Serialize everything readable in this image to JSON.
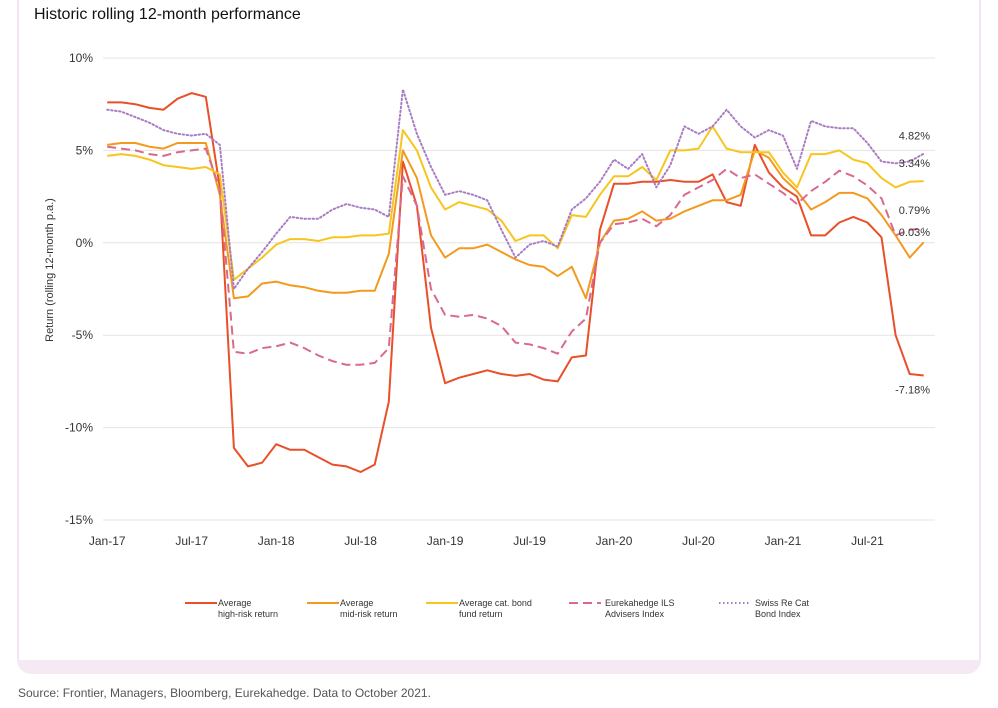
{
  "chart_data": {
    "type": "line",
    "title": "Historic rolling 12-month performance",
    "ylabel": "Return (rolling 12-month p.a.)",
    "xlabel": "",
    "ylim": [
      -15,
      10
    ],
    "y_ticks": [
      "10%",
      "5%",
      "0%",
      "-5%",
      "-10%",
      "-15%"
    ],
    "y_tick_values": [
      10,
      5,
      0,
      -5,
      -10,
      -15
    ],
    "x_ticks": [
      {
        "label": "Jan-17",
        "index": 0
      },
      {
        "label": "Jul-17",
        "index": 6
      },
      {
        "label": "Jan-18",
        "index": 12
      },
      {
        "label": "Jul-18",
        "index": 18
      },
      {
        "label": "Jan-19",
        "index": 24
      },
      {
        "label": "Jul-19",
        "index": 30
      },
      {
        "label": "Jan-20",
        "index": 36
      },
      {
        "label": "Jul-20",
        "index": 42
      },
      {
        "label": "Jan-21",
        "index": 48
      },
      {
        "label": "Jul-21",
        "index": 54
      }
    ],
    "x_range": [
      -0.3,
      58.8
    ],
    "grid": "horizontal",
    "legend_position": "bottom",
    "series": [
      {
        "name": "Average high-risk return",
        "legend_lines": [
          "Average",
          "high-risk return"
        ],
        "color": "#e8502a",
        "dash": "solid",
        "values": [
          7.6,
          7.6,
          7.5,
          7.3,
          7.2,
          7.8,
          8.1,
          7.9,
          3.0,
          -11.1,
          -12.1,
          -11.9,
          -10.9,
          -11.2,
          -11.2,
          -11.6,
          -12.0,
          -12.1,
          -12.4,
          -12.0,
          -8.6,
          4.4,
          2.0,
          -4.6,
          -7.6,
          -7.3,
          -7.1,
          -6.9,
          -7.1,
          -7.2,
          -7.1,
          -7.4,
          -7.5,
          -6.2,
          -6.1,
          0.7,
          3.2,
          3.2,
          3.3,
          3.3,
          3.4,
          3.3,
          3.3,
          3.7,
          2.2,
          2.0,
          5.3,
          3.8,
          3.0,
          2.5,
          0.4,
          0.4,
          1.1,
          1.4,
          1.1,
          0.3,
          -5.0,
          -7.1,
          -7.18
        ],
        "end_label": "-7.18%"
      },
      {
        "name": "Average mid-risk return",
        "legend_lines": [
          "Average",
          "mid-risk return"
        ],
        "color": "#f39a1e",
        "dash": "solid",
        "values": [
          5.3,
          5.4,
          5.4,
          5.2,
          5.1,
          5.4,
          5.4,
          5.4,
          2.6,
          -3.0,
          -2.9,
          -2.2,
          -2.1,
          -2.3,
          -2.4,
          -2.6,
          -2.7,
          -2.7,
          -2.6,
          -2.6,
          -0.6,
          5.0,
          3.5,
          0.4,
          -0.8,
          -0.3,
          -0.3,
          -0.1,
          -0.5,
          -0.9,
          -1.2,
          -1.3,
          -1.8,
          -1.3,
          -3.0,
          0.0,
          1.2,
          1.3,
          1.7,
          1.2,
          1.3,
          1.7,
          2.0,
          2.3,
          2.3,
          2.6,
          5.0,
          4.6,
          3.5,
          2.8,
          1.8,
          2.2,
          2.7,
          2.7,
          2.4,
          1.5,
          0.4,
          -0.8,
          0.03
        ],
        "end_label": "0.03%"
      },
      {
        "name": "Average cat. bond fund return",
        "legend_lines": [
          "Average cat. bond",
          "fund return"
        ],
        "color": "#f7c51e",
        "dash": "solid",
        "values": [
          4.7,
          4.8,
          4.7,
          4.5,
          4.2,
          4.1,
          4.0,
          4.1,
          3.7,
          -2.0,
          -1.4,
          -0.8,
          -0.1,
          0.2,
          0.2,
          0.1,
          0.3,
          0.3,
          0.4,
          0.4,
          0.5,
          6.1,
          5.0,
          3.0,
          1.8,
          2.2,
          2.0,
          1.8,
          1.2,
          0.1,
          0.4,
          0.4,
          -0.3,
          1.5,
          1.4,
          2.6,
          3.6,
          3.6,
          4.1,
          3.4,
          5.0,
          5.0,
          5.1,
          6.3,
          5.1,
          4.9,
          4.9,
          4.9,
          3.8,
          3.0,
          4.8,
          4.8,
          5.0,
          4.5,
          4.3,
          3.5,
          3.0,
          3.3,
          3.34
        ],
        "end_label": "3.34%"
      },
      {
        "name": "Eurekahedge ILS Advisers Index",
        "legend_lines": [
          "Eurekahedge ILS",
          "Advisers Index"
        ],
        "color": "#d9698f",
        "dash": "dashed",
        "values": [
          5.2,
          5.1,
          5.0,
          4.8,
          4.7,
          4.9,
          5.0,
          5.1,
          2.9,
          -5.9,
          -6.0,
          -5.7,
          -5.6,
          -5.4,
          -5.7,
          -6.1,
          -6.4,
          -6.6,
          -6.6,
          -6.5,
          -5.7,
          3.6,
          2.0,
          -2.5,
          -3.9,
          -4.0,
          -3.9,
          -4.1,
          -4.5,
          -5.4,
          -5.5,
          -5.7,
          -6.0,
          -4.8,
          -4.1,
          0.0,
          1.0,
          1.1,
          1.3,
          0.9,
          1.5,
          2.6,
          3.0,
          3.4,
          4.0,
          3.5,
          3.7,
          3.2,
          2.7,
          2.1,
          2.8,
          3.3,
          3.9,
          3.6,
          3.1,
          2.4,
          0.4,
          0.7,
          0.79
        ],
        "end_label": "0.79%"
      },
      {
        "name": "Swiss Re Cat Bond Index",
        "legend_lines": [
          "Swiss Re Cat",
          "Bond Index"
        ],
        "color": "#a87cc2",
        "dash": "dotted",
        "values": [
          7.2,
          7.1,
          6.8,
          6.5,
          6.1,
          5.9,
          5.8,
          5.9,
          5.3,
          -2.5,
          -1.4,
          -0.5,
          0.5,
          1.4,
          1.3,
          1.3,
          1.8,
          2.1,
          1.9,
          1.8,
          1.4,
          8.3,
          5.9,
          4.1,
          2.6,
          2.8,
          2.6,
          2.3,
          0.7,
          -0.8,
          -0.1,
          0.1,
          -0.2,
          1.8,
          2.4,
          3.3,
          4.5,
          4.0,
          4.8,
          3.0,
          4.2,
          6.3,
          5.9,
          6.3,
          7.2,
          6.3,
          5.7,
          6.1,
          5.8,
          4.0,
          6.6,
          6.3,
          6.2,
          6.2,
          5.4,
          4.4,
          4.3,
          4.4,
          4.82
        ],
        "end_label": "4.82%"
      }
    ],
    "end_label_order": [
      "Swiss Re Cat Bond Index",
      "Average cat. bond fund return",
      "Eurekahedge ILS Advisers Index",
      "Average mid-risk return",
      "Average high-risk return"
    ]
  },
  "source_note": "Source: Frontier, Managers, Bloomberg, Eurekahedge. Data to October 2021."
}
